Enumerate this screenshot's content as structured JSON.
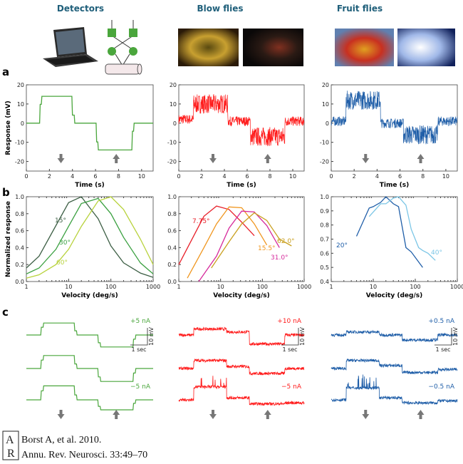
{
  "columns": [
    "Detectors",
    "Blow flies",
    "Fruit flies"
  ],
  "panel_labels": [
    "a",
    "b",
    "c"
  ],
  "citation": {
    "line1": "Borst A, et al. 2010.",
    "line2": "Annu. Rev. Neurosci. 33:49–70"
  },
  "chart_data": [
    {
      "panel": "a",
      "type": "line",
      "column": "Detectors",
      "xlabel": "Time (s)",
      "ylabel": "Response (mV)",
      "xlim": [
        0,
        11
      ],
      "ylim": [
        -25,
        20
      ],
      "xticks": [
        0,
        2,
        4,
        6,
        8,
        10
      ],
      "yticks": [
        -20,
        -10,
        0,
        10,
        20
      ],
      "steps": {
        "t": [
          0,
          1.2,
          4.0,
          6.1,
          9.2
        ],
        "v": [
          0,
          14,
          0,
          -14,
          0
        ]
      },
      "noise": false,
      "color": "#4aa63c",
      "arrows": [
        {
          "dir": "down",
          "t": 3
        },
        {
          "dir": "up",
          "t": 7.8
        }
      ]
    },
    {
      "panel": "a",
      "type": "line",
      "column": "Blow flies",
      "xlabel": "Time (s)",
      "xlim": [
        0,
        11
      ],
      "ylim": [
        -25,
        20
      ],
      "xticks": [
        0,
        2,
        4,
        6,
        8,
        10
      ],
      "yticks": [
        -20,
        -10,
        0,
        10,
        20
      ],
      "steps": {
        "t": [
          0,
          1.3,
          4.3,
          6.3,
          9.3
        ],
        "v": [
          2,
          10,
          1,
          -7,
          1
        ]
      },
      "noise": true,
      "color": "#ff1a1a",
      "arrows": [
        {
          "dir": "down",
          "t": 3
        },
        {
          "dir": "up",
          "t": 7.8
        }
      ]
    },
    {
      "panel": "a",
      "type": "line",
      "column": "Fruit flies",
      "xlabel": "Time (s)",
      "xlim": [
        0,
        11
      ],
      "ylim": [
        -25,
        20
      ],
      "xticks": [
        0,
        2,
        4,
        6,
        8,
        10
      ],
      "yticks": [
        -20,
        -10,
        0,
        10,
        20
      ],
      "steps": {
        "t": [
          0,
          1.3,
          4.3,
          6.3,
          9.3
        ],
        "v": [
          1,
          12,
          0,
          -6,
          1
        ]
      },
      "noise": true,
      "color": "#1f5ea8",
      "arrows": [
        {
          "dir": "down",
          "t": 3
        },
        {
          "dir": "up",
          "t": 7.8
        }
      ]
    },
    {
      "panel": "b",
      "type": "line",
      "column": "Detectors",
      "xlabel": "Velocity (deg/s)",
      "ylabel": "Normalized response",
      "xscale": "log",
      "xlim": [
        1,
        1000
      ],
      "ylim": [
        0,
        1.0
      ],
      "xticks": [
        1,
        10,
        100,
        1000
      ],
      "yticks": [
        0.0,
        0.2,
        0.4,
        0.6,
        0.8,
        1.0
      ],
      "series": [
        {
          "name": "15°",
          "color": "#3d5f45",
          "x": [
            1,
            2,
            5,
            10,
            20,
            50,
            100,
            200,
            500,
            1000
          ],
          "y": [
            0.16,
            0.3,
            0.66,
            0.93,
            1.0,
            0.74,
            0.42,
            0.22,
            0.1,
            0.05
          ]
        },
        {
          "name": "30°",
          "color": "#3aa040",
          "x": [
            1,
            2,
            5,
            10,
            20,
            50,
            100,
            200,
            500,
            1000
          ],
          "y": [
            0.09,
            0.16,
            0.38,
            0.65,
            0.92,
            0.98,
            0.8,
            0.52,
            0.22,
            0.09
          ]
        },
        {
          "name": "60°",
          "color": "#b8d23c",
          "x": [
            1,
            2,
            5,
            10,
            20,
            50,
            100,
            200,
            500,
            1000
          ],
          "y": [
            0.04,
            0.08,
            0.2,
            0.38,
            0.65,
            0.95,
            1.0,
            0.85,
            0.5,
            0.2
          ]
        }
      ]
    },
    {
      "panel": "b",
      "type": "line",
      "column": "Blow flies",
      "xlabel": "Velocity (deg/s)",
      "xscale": "log",
      "xlim": [
        1,
        1000
      ],
      "ylim": [
        0,
        1.0
      ],
      "xticks": [
        1,
        10,
        100,
        1000
      ],
      "yticks": [
        0.0,
        0.2,
        0.4,
        0.6,
        0.8,
        1.0
      ],
      "series": [
        {
          "name": "7.75°",
          "color": "#e8202a",
          "x": [
            1,
            4,
            8,
            16,
            32,
            64
          ],
          "y": [
            0.2,
            0.77,
            0.89,
            0.85,
            0.7,
            0.54
          ]
        },
        {
          "name": "15.5°",
          "color": "#f0961e",
          "x": [
            1.6,
            4,
            8,
            16,
            32,
            64,
            128
          ],
          "y": [
            0.04,
            0.4,
            0.68,
            0.88,
            0.87,
            0.68,
            0.43
          ]
        },
        {
          "name": "31.0°",
          "color": "#d62a9c",
          "x": [
            3,
            8,
            16,
            32,
            64,
            128,
            256
          ],
          "y": [
            0.0,
            0.3,
            0.63,
            0.83,
            0.82,
            0.66,
            0.4
          ]
        },
        {
          "name": "62.0°",
          "color": "#c9a020",
          "x": [
            6,
            16,
            32,
            64,
            128,
            256,
            500
          ],
          "y": [
            0.16,
            0.47,
            0.68,
            0.81,
            0.72,
            0.5,
            0.42
          ]
        }
      ]
    },
    {
      "panel": "b",
      "type": "line",
      "column": "Fruit flies",
      "xlabel": "Velocity (deg/s)",
      "xscale": "log",
      "xlim": [
        1,
        1000
      ],
      "ylim": [
        0.4,
        1.0
      ],
      "xticks": [
        1,
        10,
        100,
        1000
      ],
      "yticks": [
        0.4,
        0.5,
        0.6,
        0.7,
        0.8,
        0.9,
        1.0
      ],
      "series": [
        {
          "name": "20°",
          "color": "#1f5ea8",
          "x": [
            4,
            8,
            10,
            15,
            20,
            30,
            40,
            60,
            80,
            150
          ],
          "y": [
            0.72,
            0.92,
            0.93,
            0.96,
            1.0,
            0.95,
            0.93,
            0.64,
            0.61,
            0.5
          ]
        },
        {
          "name": "40°",
          "color": "#7cc6e6",
          "x": [
            8,
            15,
            20,
            30,
            40,
            60,
            80,
            120,
            150,
            200,
            300
          ],
          "y": [
            0.86,
            0.95,
            0.95,
            0.99,
            1.0,
            0.94,
            0.77,
            0.64,
            0.62,
            0.6,
            0.55
          ]
        }
      ]
    },
    {
      "panel": "c",
      "type": "line",
      "column": "Detectors",
      "color": "#4aa63c",
      "noise": false,
      "traces": [
        {
          "label": "+5 nA",
          "steps": [
            0,
            12,
            0,
            -12,
            0
          ]
        },
        {
          "label": "",
          "steps": [
            0,
            13,
            0,
            -13,
            0
          ]
        },
        {
          "label": "−5 nA",
          "steps": [
            0,
            14,
            0,
            -10,
            0
          ]
        }
      ],
      "scale_bar": {
        "v": "10 mV",
        "t": "1 sec"
      }
    },
    {
      "panel": "c",
      "type": "line",
      "column": "Blow flies",
      "color": "#ff1a1a",
      "noise": true,
      "traces": [
        {
          "label": "+10 nA",
          "steps": [
            0,
            6,
            3,
            -9,
            0
          ]
        },
        {
          "label": "",
          "steps": [
            0,
            8,
            2,
            -5,
            0
          ]
        },
        {
          "label": "−5 nA",
          "steps": [
            0,
            13,
            2,
            -4,
            -3
          ]
        }
      ],
      "scale_bar": {
        "v": "10 mV",
        "t": "1 sec"
      }
    },
    {
      "panel": "c",
      "type": "line",
      "column": "Fruit flies",
      "color": "#1f5ea8",
      "noise": true,
      "traces": [
        {
          "label": "+0.5 nA",
          "steps": [
            0,
            3,
            0,
            -5,
            0
          ]
        },
        {
          "label": "",
          "steps": [
            0,
            8,
            3,
            -4,
            -1
          ]
        },
        {
          "label": "−0.5 nA",
          "steps": [
            0,
            12,
            2,
            -3,
            -1
          ]
        }
      ],
      "scale_bar": {
        "v": "10 mV",
        "t": "1 sec"
      }
    }
  ]
}
